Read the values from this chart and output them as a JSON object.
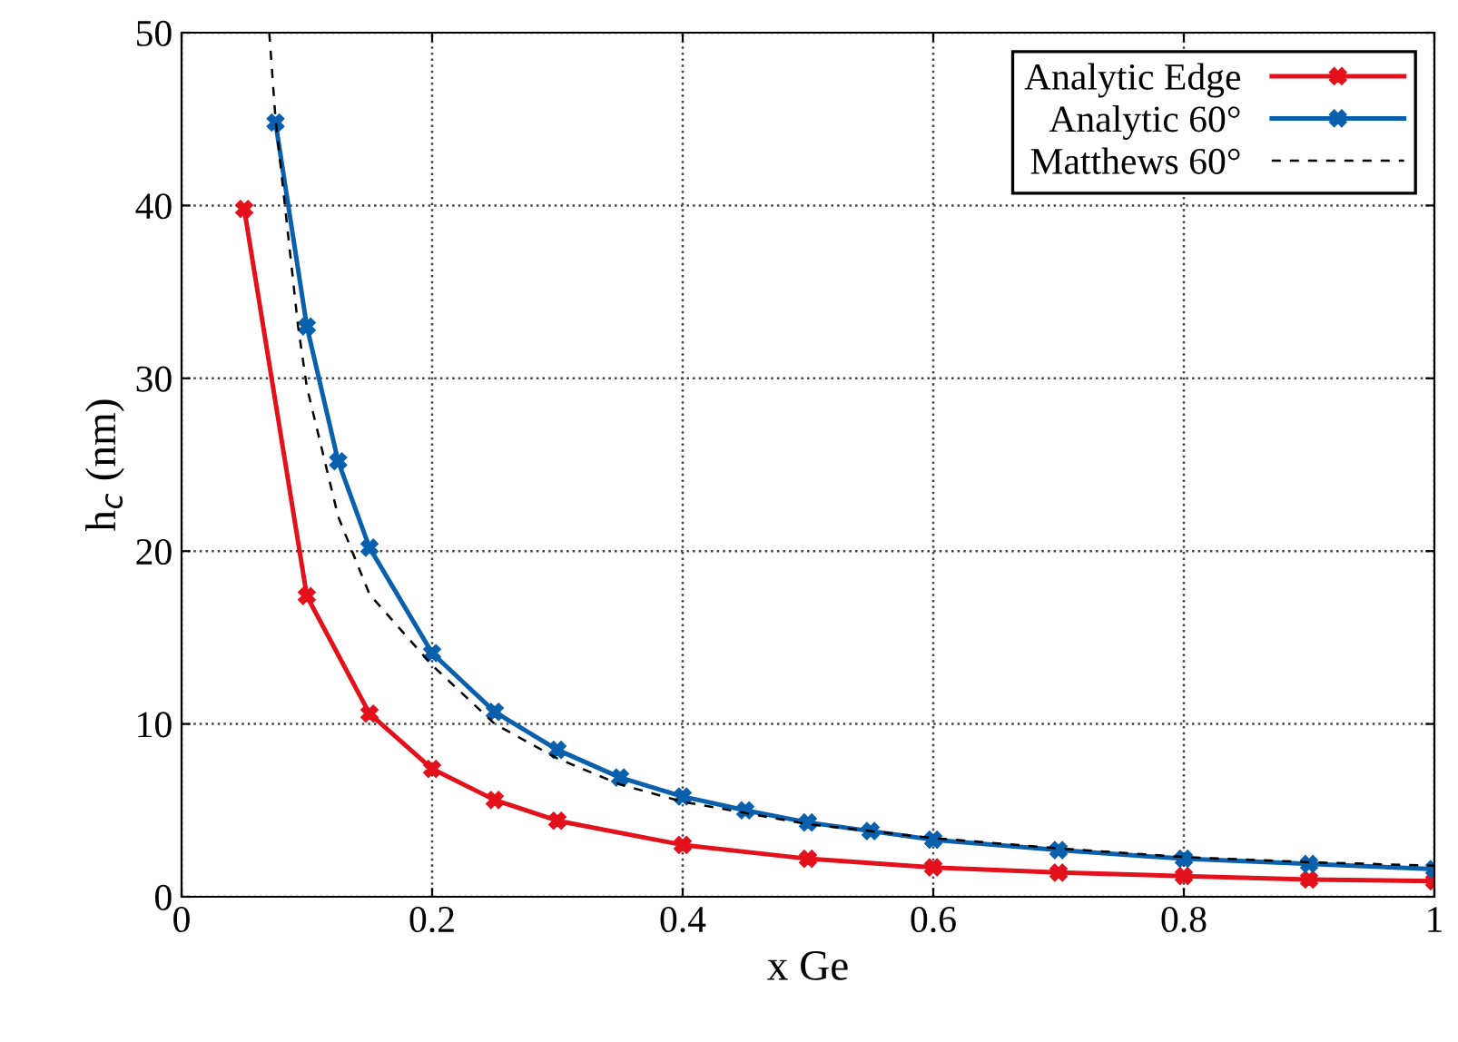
{
  "chart_data": {
    "type": "line",
    "xlabel": "x Ge",
    "ylabel": "h$_{c}$ (nm)",
    "xlim": [
      0,
      1
    ],
    "ylim": [
      0,
      50
    ],
    "xticks": [
      0,
      0.2,
      0.4,
      0.6,
      0.8,
      1
    ],
    "yticks": [
      0,
      10,
      20,
      30,
      40,
      50
    ],
    "grid": true,
    "legend": "top right",
    "series": [
      {
        "name": "Analytic Edge",
        "color": "#e3111b",
        "marker": "cross",
        "line_style": "solid",
        "x": [
          0.05,
          0.1,
          0.15,
          0.2,
          0.25,
          0.3,
          0.4,
          0.5,
          0.6,
          0.7,
          0.8,
          0.9,
          1.0
        ],
        "values": [
          39.8,
          17.4,
          10.6,
          7.4,
          5.6,
          4.4,
          3.0,
          2.2,
          1.7,
          1.4,
          1.2,
          1.0,
          0.9
        ]
      },
      {
        "name": "Analytic 60°",
        "color": "#0a60ad",
        "marker": "cross",
        "line_style": "solid",
        "x": [
          0.075,
          0.1,
          0.125,
          0.15,
          0.2,
          0.25,
          0.3,
          0.35,
          0.4,
          0.45,
          0.5,
          0.55,
          0.6,
          0.7,
          0.8,
          0.9,
          1.0
        ],
        "values": [
          44.8,
          33.0,
          25.2,
          20.2,
          14.1,
          10.7,
          8.5,
          6.9,
          5.8,
          5.0,
          4.3,
          3.8,
          3.3,
          2.7,
          2.2,
          1.9,
          1.6
        ]
      },
      {
        "name": "Matthews 60°",
        "color": "#000000",
        "marker": "none",
        "line_style": "dashed",
        "x": [
          0.07,
          0.075,
          0.093,
          0.1,
          0.125,
          0.15,
          0.2,
          0.25,
          0.3,
          0.35,
          0.4,
          0.5,
          0.6,
          0.7,
          0.8,
          0.9,
          1.0
        ],
        "values": [
          50,
          45,
          33,
          29.5,
          22,
          17.5,
          13.4,
          10.0,
          8.0,
          6.5,
          5.5,
          4.2,
          3.4,
          2.8,
          2.3,
          2.0,
          1.8
        ]
      }
    ]
  }
}
